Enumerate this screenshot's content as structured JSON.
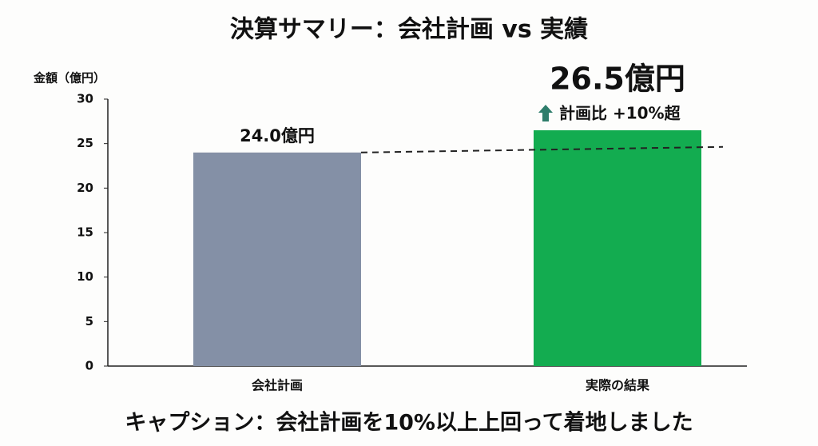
{
  "chart_data": {
    "type": "bar",
    "title": "決算サマリー：会社計画 vs 実績",
    "y_label": "金額（億円）",
    "categories": [
      "会社計画",
      "実際の結果"
    ],
    "values": [
      24.0,
      26.5
    ],
    "value_labels": [
      "24.0億円",
      "26.5億円"
    ],
    "colors": [
      "#8490a6",
      "#13ac50"
    ],
    "annotation": "計画比 +10%超",
    "caption": "キャプション：会社計画を10%以上上回って着地しました",
    "ylim": [
      0,
      30
    ],
    "yticks": [
      0,
      5,
      10,
      15,
      20,
      25,
      30
    ]
  }
}
